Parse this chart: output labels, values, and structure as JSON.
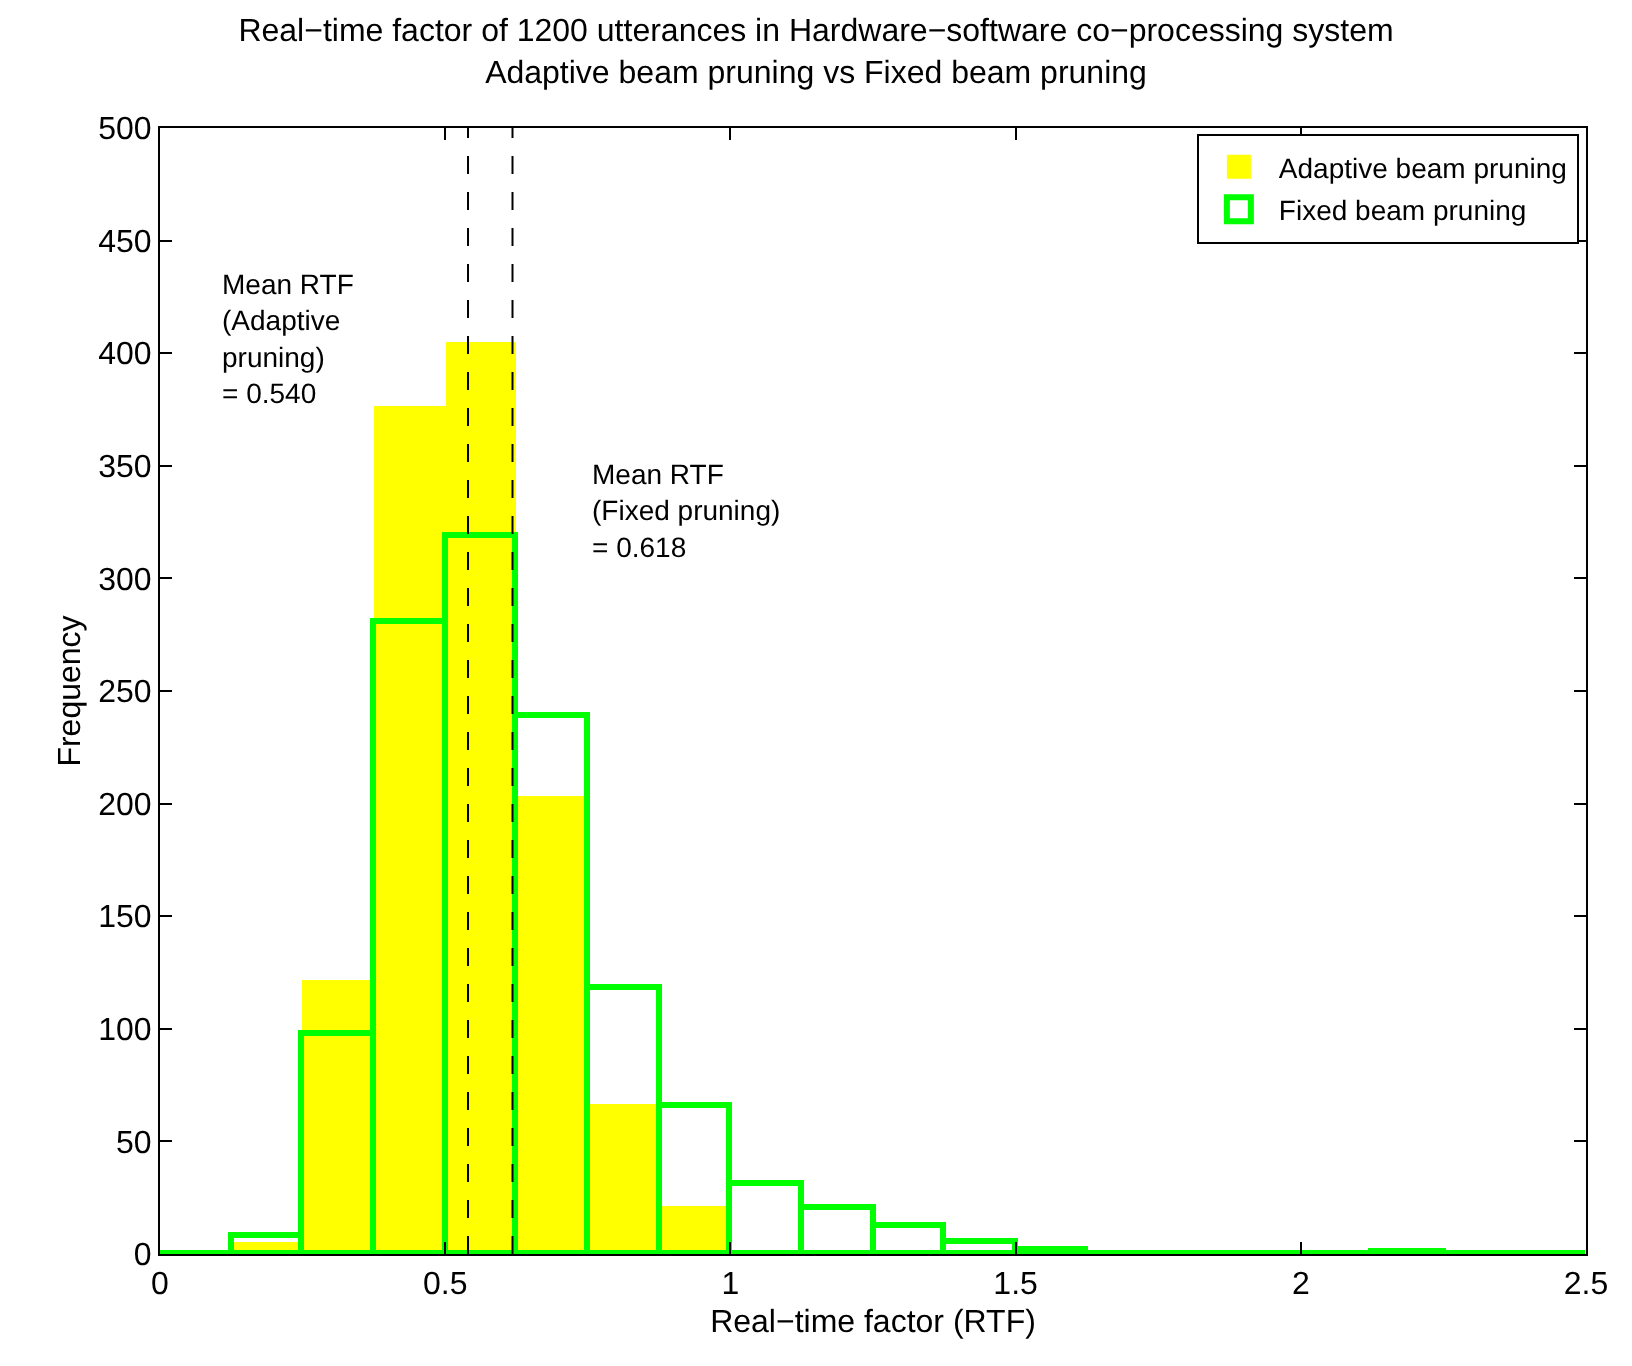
{
  "chart_data": {
    "type": "histogram",
    "title": "Real−time factor of 1200 utterances in Hardware−software co−processing system",
    "subtitle": "Adaptive beam pruning vs Fixed beam pruning",
    "xlabel": "Real−time factor (RTF)",
    "ylabel": "Frequency",
    "bins": [
      0,
      0.125,
      0.25,
      0.375,
      0.5,
      0.625,
      0.75,
      0.875,
      1,
      1.125,
      1.25,
      1.375,
      1.5,
      1.625,
      1.75,
      1.875,
      2,
      2.125,
      2.25,
      2.375,
      2.5
    ],
    "series": [
      {
        "name": "Adaptive beam pruning",
        "color": "#ffff00",
        "values": [
          0,
          5,
          122,
          377,
          405,
          203,
          67,
          21,
          null,
          null,
          0,
          0,
          0,
          0,
          0,
          0,
          0,
          0,
          0,
          0
        ]
      },
      {
        "name": "Fixed beam pruning",
        "color": "#00ff00",
        "values": [
          0,
          8,
          98,
          281,
          319,
          239,
          118,
          66,
          31,
          20,
          12,
          5,
          2,
          0,
          0,
          0,
          0,
          1,
          0,
          0
        ]
      }
    ],
    "xlim": [
      0,
      2.5
    ],
    "xticks": [
      0,
      0.5,
      1,
      1.5,
      2,
      2.5
    ],
    "ylim": [
      0,
      500
    ],
    "yticks": [
      0,
      50,
      100,
      150,
      200,
      250,
      300,
      350,
      400,
      450,
      500
    ],
    "ref_lines": [
      {
        "axis": "x",
        "value": 0.54,
        "color": "#000000",
        "line_style": "dashed"
      },
      {
        "axis": "x",
        "value": 0.618,
        "color": "#000000",
        "line_style": "dashed"
      }
    ],
    "annotations": [
      "Mean RTF\n(Adaptive\npruning)\n= 0.540",
      "Mean RTF\n(Fixed pruning)\n= 0.618"
    ],
    "legend": "top right"
  }
}
